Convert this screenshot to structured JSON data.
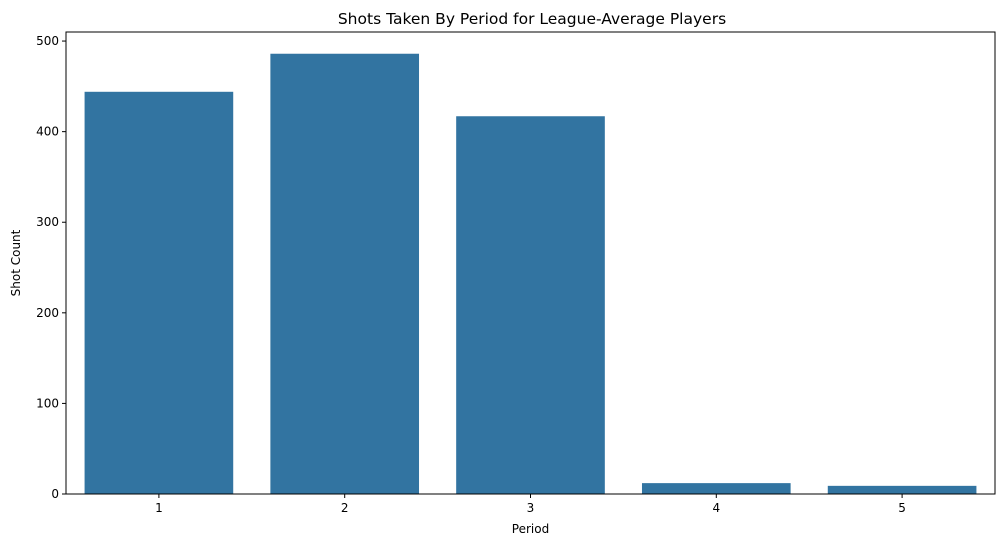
{
  "chart_data": {
    "type": "bar",
    "title": "Shots Taken By Period for League-Average Players",
    "xlabel": "Period",
    "ylabel": "Shot Count",
    "categories": [
      "1",
      "2",
      "3",
      "4",
      "5"
    ],
    "values": [
      444,
      486,
      417,
      12,
      9
    ],
    "ylim": [
      0,
      510
    ],
    "yticks": [
      0,
      100,
      200,
      300,
      400,
      500
    ],
    "grid": false,
    "legend": "none",
    "bar_color": "#3274a1"
  }
}
